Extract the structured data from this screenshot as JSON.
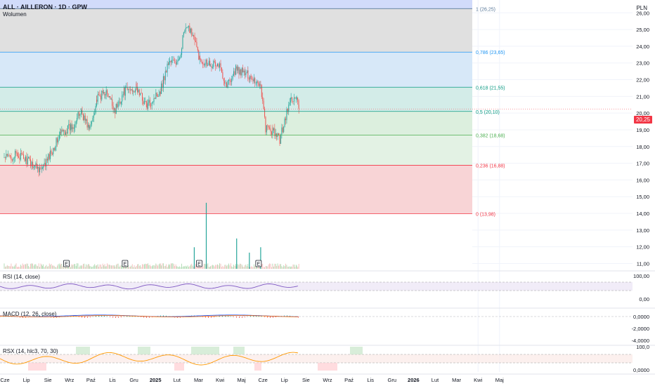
{
  "header": {
    "title": "ALL · AILLERON · 1D · GPW",
    "volume_label": "Wolumen",
    "currency": "PLN"
  },
  "price_tag": "20,25",
  "colors": {
    "up": "#26a69a",
    "down": "#ef5350",
    "rsi": "#7e57c2",
    "macd": "#2962ff",
    "signal": "#ff6d00",
    "fib_0": "#f23645",
    "fib_236": "#f23645",
    "fib_382": "#4caf50",
    "fib_5": "#089981",
    "fib_618": "#089981",
    "fib_786": "#2196f3",
    "fib_1": "#5b7a9a"
  },
  "chart_data": {
    "type": "candlestick",
    "title": "ALL · AILLERON · 1D · GPW",
    "y_axis": {
      "min": 10.6,
      "max": 26.6,
      "ticks": [
        "26,00",
        "25,00",
        "24,00",
        "23,00",
        "22,00",
        "21,00",
        "20,00",
        "19,00",
        "18,00",
        "17,00",
        "16,00",
        "15,00",
        "14,00",
        "13,00",
        "12,00",
        "11,00"
      ]
    },
    "x_axis": {
      "ticks": [
        "Cze",
        "Lip",
        "Sie",
        "Wrz",
        "Paź",
        "Lis",
        "Gru",
        "2025",
        "Lut",
        "Mar",
        "Kwi",
        "Maj",
        "Cze",
        "Lip",
        "Sie",
        "Wrz",
        "Paź",
        "Lis",
        "Gru",
        "2026",
        "Lut",
        "Mar",
        "Kwi",
        "Maj"
      ]
    },
    "fib_levels": [
      {
        "label": "1 (26,25)",
        "value": 26.25
      },
      {
        "label": "0,786 (23,65)",
        "value": 23.65
      },
      {
        "label": "0,618 (21,55)",
        "value": 21.55
      },
      {
        "label": "0,5 (20,10)",
        "value": 20.1
      },
      {
        "label": "0,382 (18,68)",
        "value": 18.68
      },
      {
        "label": "0,236 (16,88)",
        "value": 16.88
      },
      {
        "label": "0 (13,98)",
        "value": 13.98
      }
    ],
    "anchors": [
      [
        "2024-06-01",
        17.3
      ],
      [
        "2024-06-20",
        17.5
      ],
      [
        "2024-07-10",
        17.0
      ],
      [
        "2024-07-25",
        16.6
      ],
      [
        "2024-08-08",
        17.8
      ],
      [
        "2024-08-20",
        18.8
      ],
      [
        "2024-09-05",
        19.2
      ],
      [
        "2024-09-18",
        20.1
      ],
      [
        "2024-09-30",
        19.0
      ],
      [
        "2024-10-10",
        20.8
      ],
      [
        "2024-10-22",
        21.3
      ],
      [
        "2024-11-05",
        20.2
      ],
      [
        "2024-11-18",
        21.3
      ],
      [
        "2024-12-05",
        21.5
      ],
      [
        "2024-12-20",
        20.4
      ],
      [
        "2025-01-08",
        21.4
      ],
      [
        "2025-01-20",
        23.1
      ],
      [
        "2025-02-03",
        23.0
      ],
      [
        "2025-02-10",
        24.8
      ],
      [
        "2025-02-20",
        25.1
      ],
      [
        "2025-03-05",
        23.2
      ],
      [
        "2025-03-20",
        23.0
      ],
      [
        "2025-04-02",
        22.8
      ],
      [
        "2025-04-12",
        21.7
      ],
      [
        "2025-04-25",
        22.6
      ],
      [
        "2025-05-12",
        22.3
      ],
      [
        "2025-05-30",
        21.7
      ],
      [
        "2025-06-06",
        19.1
      ],
      [
        "2025-06-16",
        18.9
      ],
      [
        "2025-06-26",
        18.4
      ],
      [
        "2025-07-03",
        19.6
      ],
      [
        "2025-07-12",
        20.9
      ],
      [
        "2025-07-20",
        20.8
      ],
      [
        "2025-07-23",
        20.25
      ]
    ],
    "earnings": [
      "2024-08-28",
      "2024-11-19",
      "2025-03-04",
      "2025-05-27"
    ],
    "volume_spikes": [
      [
        "2025-02-25",
        0.32
      ],
      [
        "2025-03-14",
        0.98
      ],
      [
        "2025-04-26",
        0.45
      ],
      [
        "2025-05-14",
        0.24
      ],
      [
        "2025-05-30",
        0.32
      ]
    ],
    "indicators": {
      "rsi": {
        "label": "RSI (14, close)",
        "ticks": [
          "100,00",
          "0,00"
        ]
      },
      "macd": {
        "label": "MACD (12, 26, close)",
        "ticks": [
          "0,0000",
          "-2,0000",
          "-4,0000"
        ]
      },
      "rsx": {
        "label": "RSX (14, hlc3, 70, 30)",
        "ticks": [
          "100,0",
          "0,0000"
        ]
      }
    }
  }
}
